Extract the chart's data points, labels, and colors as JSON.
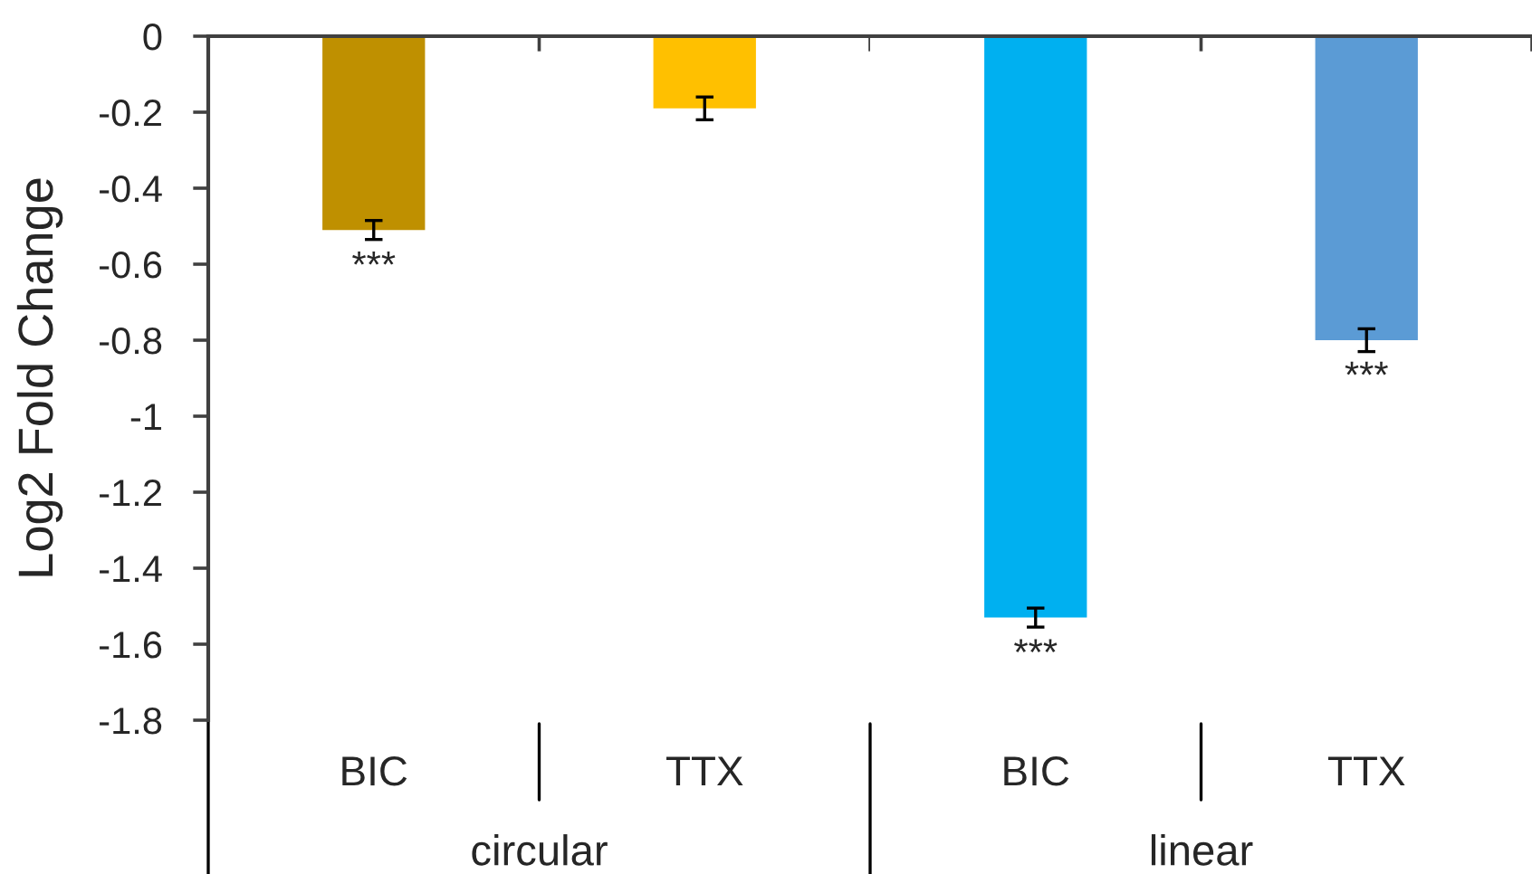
{
  "chart_data": [
    {
      "type": "bar",
      "ylabel": "Log2 Fold Change",
      "xlabel": "circular",
      "categories": [
        "BIC",
        "TTX"
      ],
      "values": [
        -0.51,
        -0.19
      ],
      "colors": [
        "#bf9000",
        "#ffc000"
      ],
      "errors": [
        0.025,
        0.03
      ],
      "ylim": [
        -1.8,
        0
      ],
      "yticks": [
        -1.8,
        -1.6,
        -1.4,
        -1.2,
        -1,
        -0.8,
        -0.6,
        -0.4,
        -0.2,
        0
      ],
      "annotations": [
        {
          "text": "***",
          "x": "BIC",
          "y": -0.51
        }
      ]
    },
    {
      "type": "bar",
      "xlabel": "linear",
      "categories": [
        "BIC",
        "TTX"
      ],
      "values": [
        -1.53,
        -0.8
      ],
      "colors": [
        "#00b0f0",
        "#5b9bd5"
      ],
      "errors": [
        0.025,
        0.03
      ],
      "ylim": [
        -1.8,
        0
      ],
      "tick_labels": "x",
      "annotations": [
        {
          "text": "***",
          "x": "BIC",
          "y": -1.53
        },
        {
          "text": "***",
          "x": "TTX",
          "y": -0.8
        }
      ]
    }
  ]
}
